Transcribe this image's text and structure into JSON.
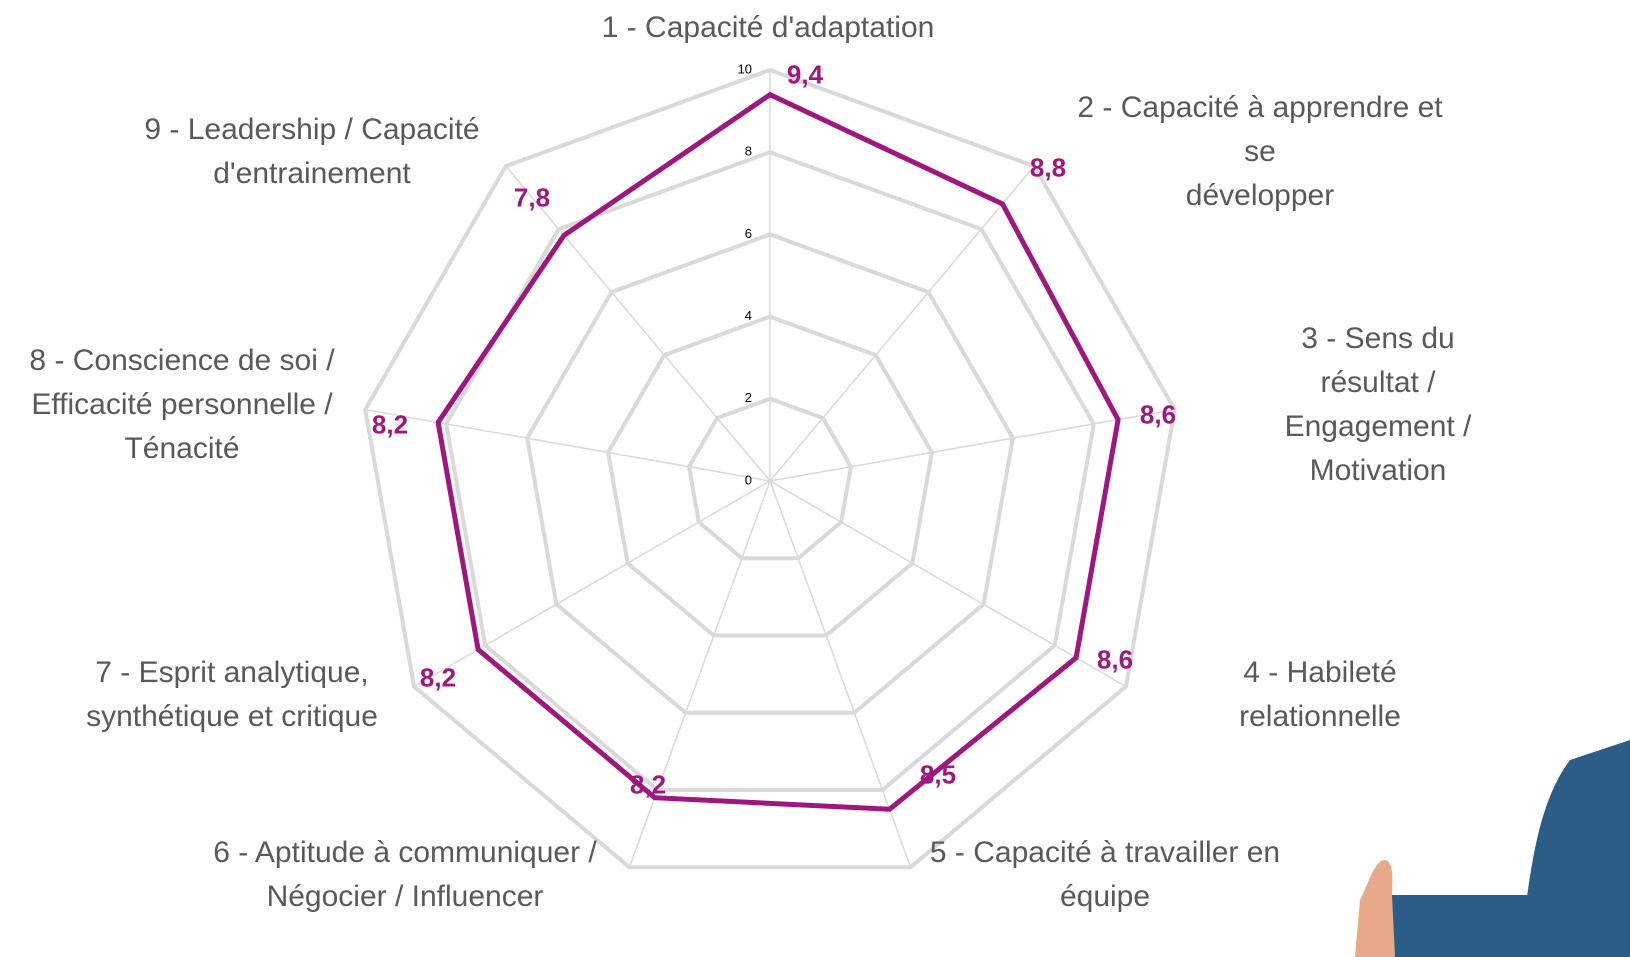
{
  "chart_data": {
    "type": "radar",
    "categories": [
      "1 - Capacité d'adaptation",
      "2 - Capacité à apprendre et se\ndévelopper",
      "3 - Sens du résultat /\nEngagement / Motivation",
      "4 - Habileté relationnelle",
      "5 - Capacité à travailler en\néquipe",
      "6 - Aptitude à communiquer /\nNégocier / Influencer",
      "7 - Esprit analytique,\nsynthétique et critique",
      "8 - Conscience de soi /\nEfficacité personnelle /\nTénacité",
      "9 - Leadership / Capacité\nd'entrainement"
    ],
    "values": [
      9.4,
      8.8,
      8.6,
      8.6,
      8.5,
      8.2,
      8.2,
      8.2,
      7.8
    ],
    "value_labels": [
      "9,4",
      "8,8",
      "8,6",
      "8,6",
      "8,5",
      "8,2",
      "8,2",
      "8,2",
      "7,8"
    ],
    "color": "#a0157e",
    "ylim": [
      0,
      10
    ],
    "yticks": [
      0,
      2,
      4,
      6,
      8,
      10
    ],
    "grid": true
  }
}
